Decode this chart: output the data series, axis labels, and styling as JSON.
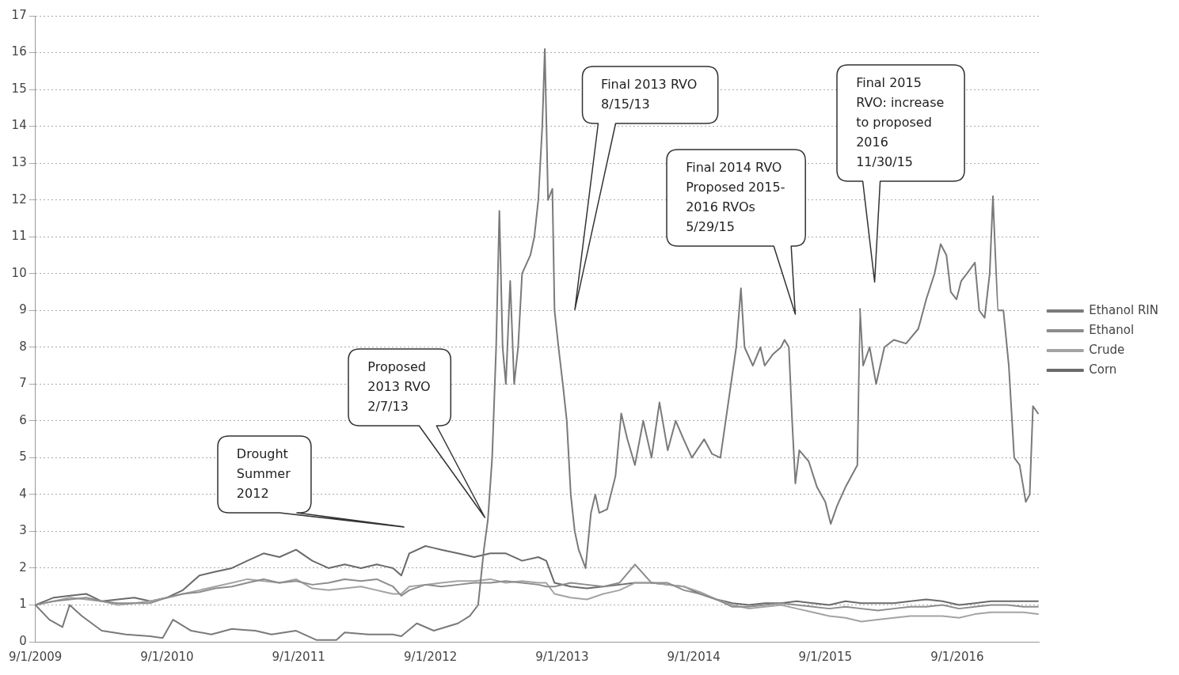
{
  "chart_data": {
    "type": "line",
    "xlim": [
      "2009-09-01",
      "2017-04-17"
    ],
    "xticks": [
      {
        "value": "2009-09-01",
        "label": "9/1/2009"
      },
      {
        "value": "2010-09-01",
        "label": "9/1/2010"
      },
      {
        "value": "2011-09-01",
        "label": "9/1/2011"
      },
      {
        "value": "2012-09-01",
        "label": "9/1/2012"
      },
      {
        "value": "2013-09-01",
        "label": "9/1/2013"
      },
      {
        "value": "2014-09-01",
        "label": "9/1/2014"
      },
      {
        "value": "2015-09-01",
        "label": "9/1/2015"
      },
      {
        "value": "2016-09-01",
        "label": "9/1/2016"
      }
    ],
    "ylim": [
      0,
      17
    ],
    "yticks": [
      0,
      1,
      2,
      3,
      4,
      5,
      6,
      7,
      8,
      9,
      10,
      11,
      12,
      13,
      14,
      15,
      16,
      17
    ],
    "grid": "y",
    "legend": "right",
    "marker": "none",
    "line_style": "solid",
    "x": [
      "2009-09-01",
      "2009-10-22",
      "2009-12-06",
      "2010-01-20",
      "2010-03-04",
      "2010-04-18",
      "2010-06-02",
      "2010-07-17",
      "2010-09-01",
      "2010-10-15",
      "2010-11-30",
      "2011-01-13",
      "2011-02-28",
      "2011-04-12",
      "2011-05-27",
      "2011-07-10",
      "2011-08-25",
      "2011-10-09",
      "2011-11-23",
      "2012-01-07",
      "2012-02-21",
      "2012-04-05",
      "2012-05-20",
      "2012-06-12",
      "2012-07-04",
      "2012-08-18",
      "2012-10-01",
      "2012-11-16",
      "2012-12-31",
      "2013-02-14",
      "2013-03-29",
      "2013-05-13",
      "2013-06-27",
      "2013-07-19",
      "2013-08-11",
      "2013-09-25",
      "2013-11-09",
      "2013-12-24",
      "2014-02-07",
      "2014-03-22",
      "2014-05-07",
      "2014-06-21",
      "2014-08-05",
      "2014-09-19",
      "2014-11-03",
      "2014-12-17",
      "2015-02-01",
      "2015-03-17",
      "2015-05-01",
      "2015-06-14",
      "2015-07-29",
      "2015-09-12",
      "2015-10-27",
      "2015-12-10",
      "2016-01-25",
      "2016-03-09",
      "2016-04-24",
      "2016-06-07",
      "2016-07-22",
      "2016-09-06",
      "2016-10-20",
      "2016-12-04",
      "2017-01-18",
      "2017-03-03",
      "2017-04-13"
    ],
    "series": [
      {
        "name": "Ethanol RIN",
        "color": "#7a7a7a",
        "x": [
          "2009-09-01",
          "2009-10-10",
          "2009-11-15",
          "2009-12-05",
          "2010-01-08",
          "2010-03-04",
          "2010-05-10",
          "2010-07-16",
          "2010-08-20",
          "2010-09-18",
          "2010-11-07",
          "2011-01-02",
          "2011-02-28",
          "2011-05-04",
          "2011-06-18",
          "2011-08-25",
          "2011-10-20",
          "2011-12-15",
          "2012-01-07",
          "2012-03-13",
          "2012-05-19",
          "2012-06-12",
          "2012-07-25",
          "2012-09-10",
          "2012-11-16",
          "2012-12-19",
          "2013-01-11",
          "2013-01-27",
          "2013-02-07",
          "2013-02-19",
          "2013-03-02",
          "2013-03-11",
          "2013-03-20",
          "2013-03-29",
          "2013-04-10",
          "2013-04-21",
          "2013-05-02",
          "2013-05-13",
          "2013-06-05",
          "2013-06-16",
          "2013-06-27",
          "2013-07-08",
          "2013-07-15",
          "2013-07-24",
          "2013-08-05",
          "2013-08-11",
          "2013-08-22",
          "2013-09-03",
          "2013-09-14",
          "2013-09-25",
          "2013-10-06",
          "2013-10-17",
          "2013-11-05",
          "2013-11-20",
          "2013-12-02",
          "2013-12-13",
          "2014-01-04",
          "2014-01-27",
          "2014-02-12",
          "2014-03-01",
          "2014-03-22",
          "2014-04-14",
          "2014-05-07",
          "2014-05-29",
          "2014-06-21",
          "2014-07-13",
          "2014-08-04",
          "2014-08-27",
          "2014-09-30",
          "2014-10-22",
          "2014-11-14",
          "2014-12-06",
          "2014-12-28",
          "2015-01-10",
          "2015-01-20",
          "2015-02-12",
          "2015-03-05",
          "2015-03-17",
          "2015-04-08",
          "2015-05-01",
          "2015-05-11",
          "2015-05-23",
          "2015-06-01",
          "2015-06-10",
          "2015-06-21",
          "2015-07-17",
          "2015-08-09",
          "2015-09-01",
          "2015-09-16",
          "2015-10-04",
          "2015-10-27",
          "2015-11-18",
          "2015-11-29",
          "2015-12-06",
          "2015-12-15",
          "2016-01-02",
          "2016-01-20",
          "2016-02-12",
          "2016-03-09",
          "2016-04-12",
          "2016-05-16",
          "2016-06-07",
          "2016-06-30",
          "2016-07-17",
          "2016-08-02",
          "2016-08-14",
          "2016-08-30",
          "2016-09-12",
          "2016-09-28",
          "2016-10-20",
          "2016-11-01",
          "2016-11-16",
          "2016-11-30",
          "2016-12-09",
          "2016-12-22",
          "2017-01-07",
          "2017-01-22",
          "2017-02-06",
          "2017-02-21",
          "2017-03-10",
          "2017-03-21",
          "2017-03-30",
          "2017-04-13"
        ],
        "values": [
          1.0,
          0.6,
          0.4,
          1.0,
          0.7,
          0.3,
          0.2,
          0.15,
          0.1,
          0.6,
          0.3,
          0.2,
          0.35,
          0.3,
          0.2,
          0.3,
          0.05,
          0.05,
          0.25,
          0.2,
          0.2,
          0.15,
          0.5,
          0.3,
          0.5,
          0.7,
          1.0,
          2.5,
          3.3,
          5,
          8,
          11.7,
          8,
          7,
          9.8,
          7,
          8,
          10,
          10.5,
          11,
          12,
          14,
          16.1,
          12,
          12.3,
          9,
          8,
          7,
          6,
          4,
          3,
          2.5,
          2,
          3.5,
          4,
          3.5,
          3.6,
          4.5,
          6.2,
          5.5,
          4.8,
          6,
          5,
          6.5,
          5.2,
          6,
          5.5,
          5,
          5.5,
          5.1,
          5,
          6.5,
          8,
          9.6,
          8,
          7.5,
          8,
          7.5,
          7.8,
          8,
          8.2,
          8,
          6,
          4.3,
          5.2,
          4.9,
          4.2,
          3.8,
          3.2,
          3.7,
          4.2,
          4.6,
          4.8,
          9.05,
          7.5,
          8,
          7,
          8,
          8.2,
          8.1,
          8.5,
          9.3,
          10,
          10.8,
          10.5,
          9.5,
          9.3,
          9.8,
          10,
          10.3,
          9,
          8.8,
          10,
          12.1,
          9,
          9,
          7.5,
          5,
          4.8,
          3.8,
          4,
          6.4,
          6.2
        ]
      },
      {
        "name": "Ethanol",
        "color": "#8c8c8c",
        "values": [
          1.0,
          1.1,
          1.15,
          1.2,
          1.1,
          1.05,
          1.05,
          1.05,
          1.2,
          1.3,
          1.35,
          1.45,
          1.5,
          1.6,
          1.7,
          1.6,
          1.65,
          1.55,
          1.6,
          1.7,
          1.65,
          1.7,
          1.5,
          1.25,
          1.4,
          1.55,
          1.5,
          1.55,
          1.6,
          1.6,
          1.65,
          1.6,
          1.55,
          1.5,
          1.5,
          1.6,
          1.55,
          1.5,
          1.6,
          2.1,
          1.6,
          1.6,
          1.4,
          1.3,
          1.15,
          0.95,
          0.95,
          1.0,
          1.05,
          1.0,
          0.95,
          0.9,
          0.95,
          0.9,
          0.85,
          0.9,
          0.95,
          0.95,
          1.0,
          0.9,
          0.95,
          1.0,
          1.0,
          0.95,
          0.95
        ]
      },
      {
        "name": "Crude",
        "color": "#a3a3a3",
        "values": [
          1.0,
          1.1,
          1.2,
          1.15,
          1.1,
          1.0,
          1.05,
          1.1,
          1.2,
          1.3,
          1.4,
          1.5,
          1.6,
          1.7,
          1.65,
          1.6,
          1.7,
          1.45,
          1.4,
          1.45,
          1.5,
          1.4,
          1.3,
          1.3,
          1.5,
          1.55,
          1.6,
          1.65,
          1.65,
          1.7,
          1.6,
          1.65,
          1.6,
          1.6,
          1.3,
          1.2,
          1.15,
          1.3,
          1.4,
          1.6,
          1.6,
          1.55,
          1.5,
          1.35,
          1.15,
          1.0,
          0.9,
          0.95,
          1.0,
          0.9,
          0.8,
          0.7,
          0.65,
          0.55,
          0.6,
          0.65,
          0.7,
          0.7,
          0.7,
          0.65,
          0.75,
          0.8,
          0.8,
          0.8,
          0.75
        ]
      },
      {
        "name": "Corn",
        "color": "#6a6a6a",
        "values": [
          1.0,
          1.2,
          1.25,
          1.3,
          1.1,
          1.15,
          1.2,
          1.1,
          1.2,
          1.4,
          1.8,
          1.9,
          2.0,
          2.2,
          2.4,
          2.3,
          2.5,
          2.2,
          2.0,
          2.1,
          2.0,
          2.1,
          2.0,
          1.8,
          2.4,
          2.6,
          2.5,
          2.4,
          2.3,
          2.4,
          2.4,
          2.2,
          2.3,
          2.2,
          1.6,
          1.5,
          1.45,
          1.5,
          1.55,
          1.6,
          1.6,
          1.55,
          1.5,
          1.3,
          1.15,
          1.05,
          1.0,
          1.05,
          1.05,
          1.1,
          1.05,
          1.0,
          1.1,
          1.05,
          1.05,
          1.05,
          1.1,
          1.15,
          1.1,
          1.0,
          1.05,
          1.1,
          1.1,
          1.1,
          1.1
        ]
      }
    ],
    "annotations": [
      "Drought\nSummer\n2012",
      "Proposed\n2013 RVO\n2/7/13",
      "Final 2013 RVO\n8/15/13",
      "Final 2014 RVO\nProposed 2015-\n2016 RVOs\n5/29/15",
      "Final 2015\nRVO: increase\nto proposed\n2016\n11/30/15"
    ]
  }
}
